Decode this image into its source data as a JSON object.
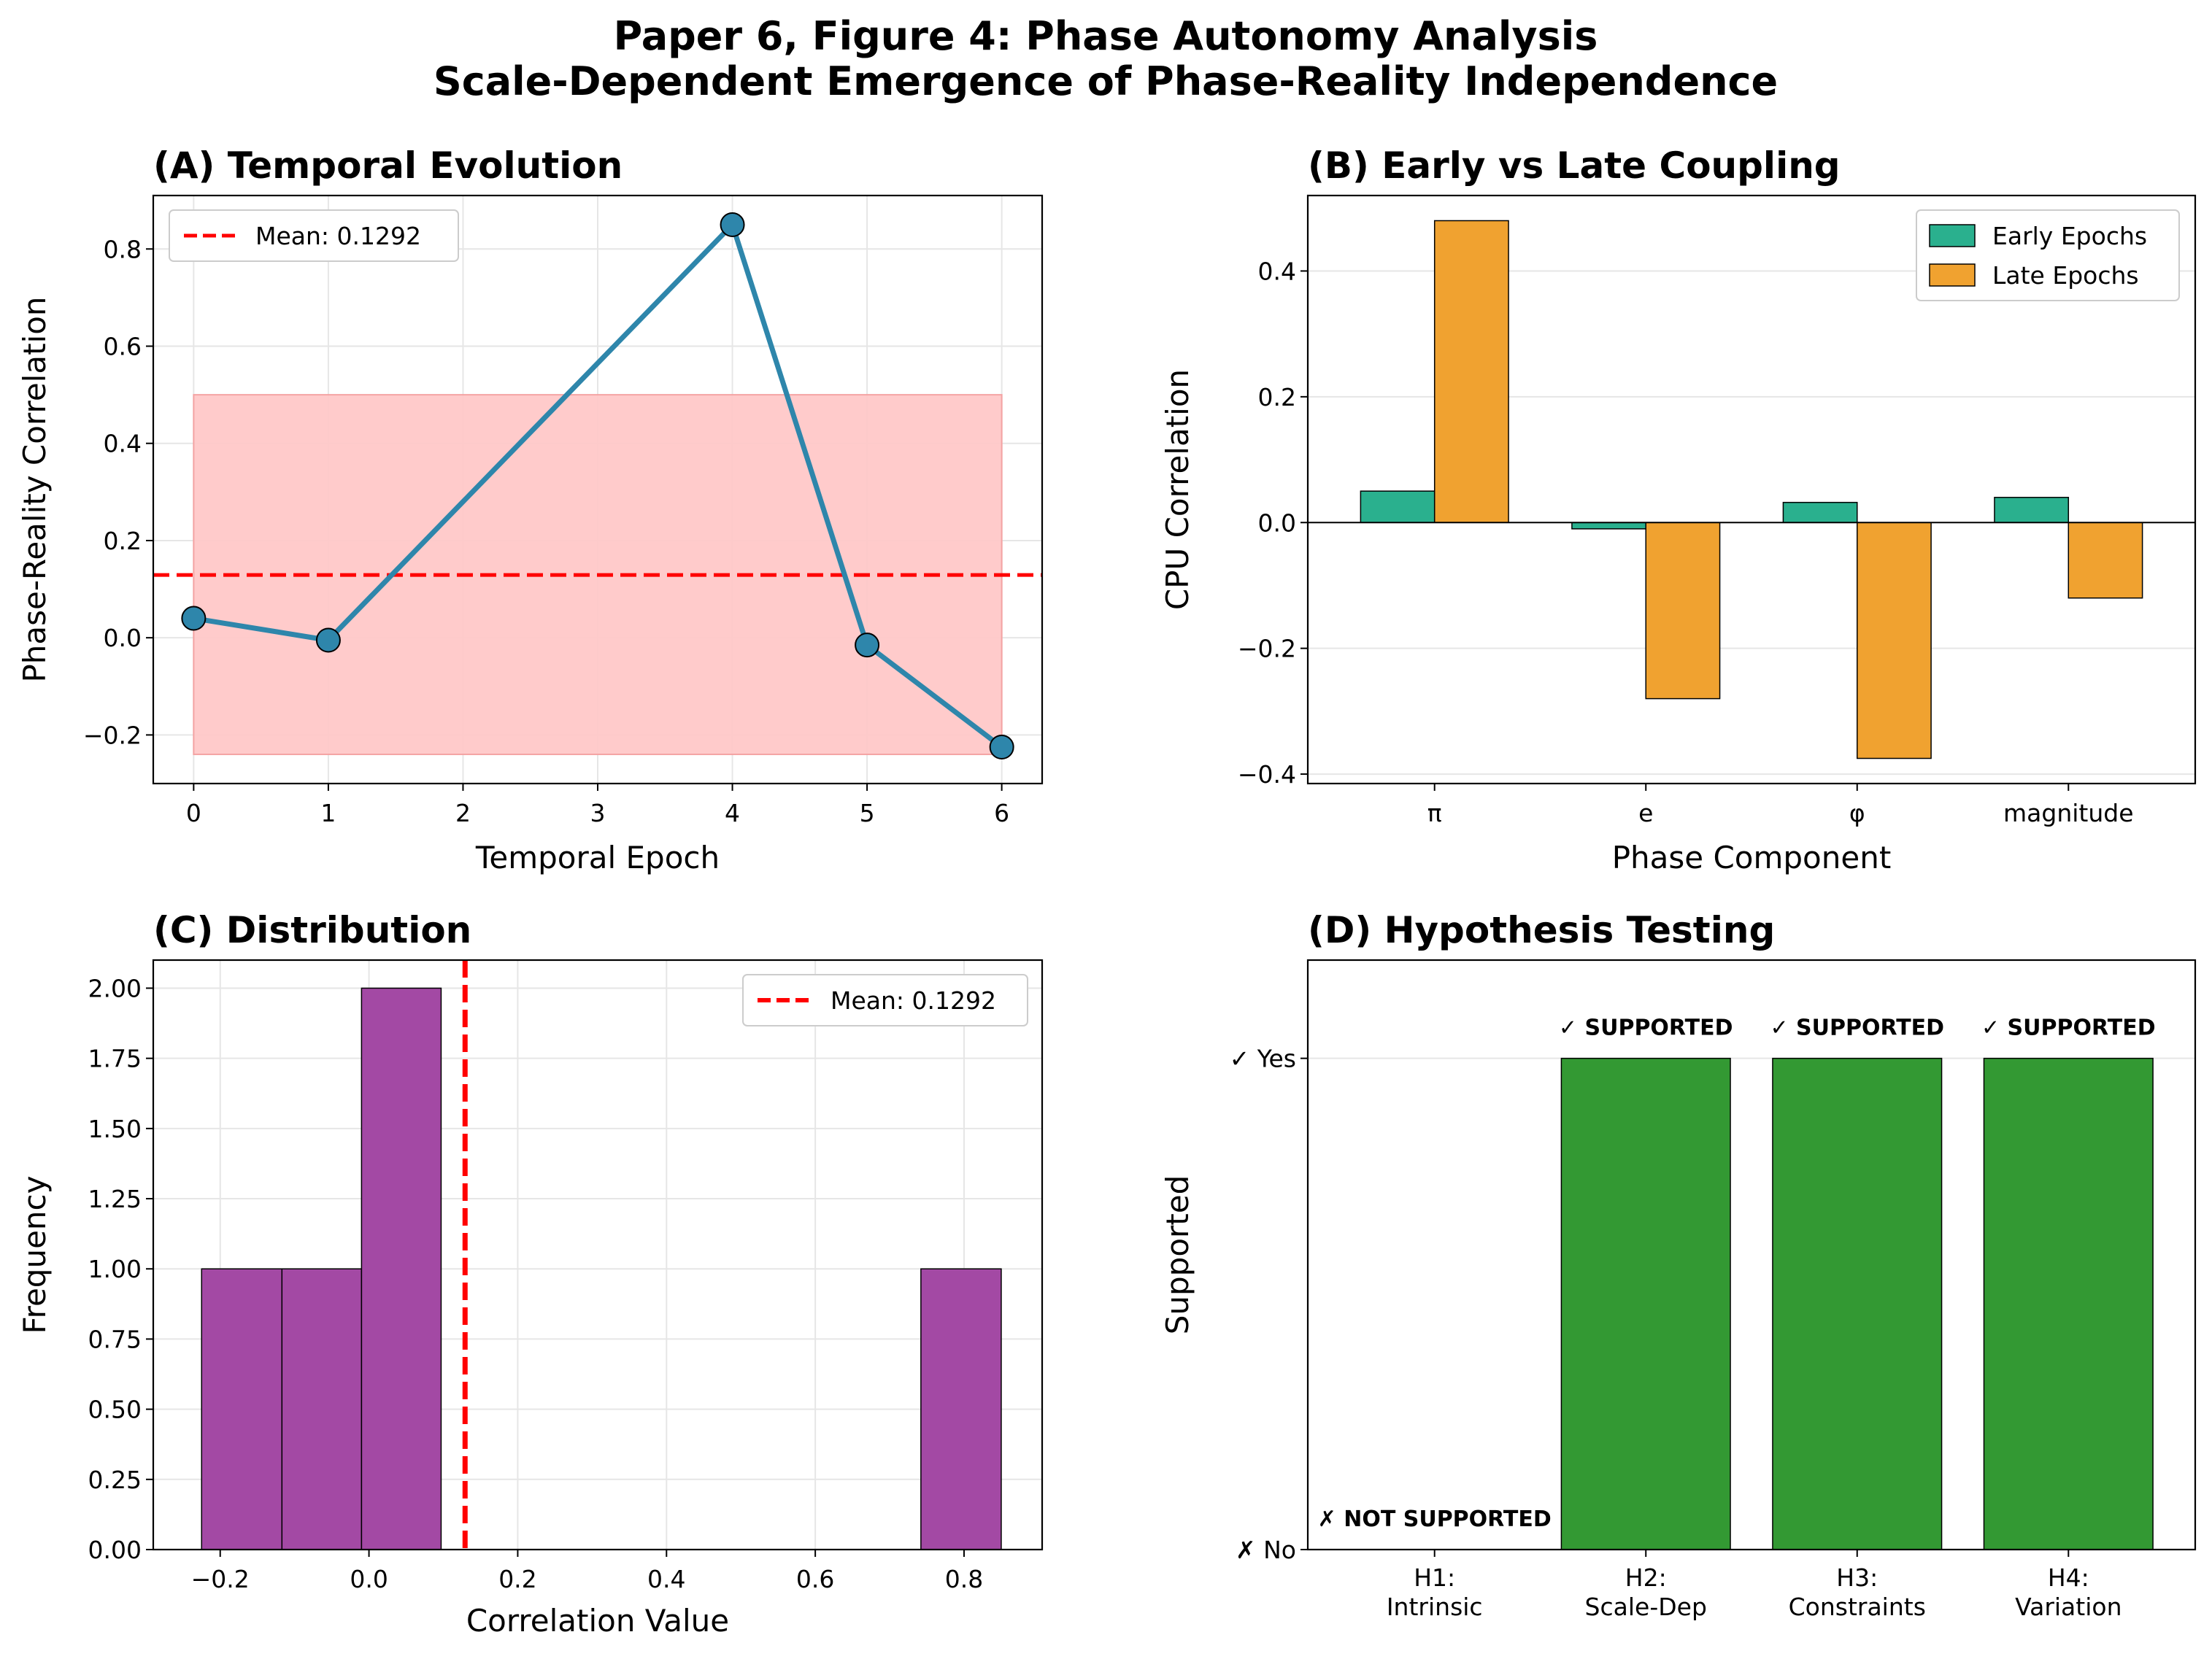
{
  "figure": {
    "title_line1": "Paper 6, Figure 4: Phase Autonomy Analysis",
    "title_line2": "Scale-Dependent Emergence of Phase-Reality Independence"
  },
  "colors": {
    "line": "#2e86ab",
    "mean": "#ff0000",
    "band": "#ffc9c9",
    "early": "#2ab08e",
    "late": "#f0a230",
    "hist": "#a349a4",
    "supported": "#339933",
    "grid": "#e6e6e6"
  },
  "chart_data": [
    {
      "id": "A",
      "type": "line",
      "title": "(A) Temporal Evolution",
      "xlabel": "Temporal Epoch",
      "ylabel": "Phase-Reality Correlation",
      "x": [
        0,
        1,
        4,
        5,
        6
      ],
      "y": [
        0.04,
        -0.005,
        0.85,
        -0.015,
        -0.225
      ],
      "xlim": [
        -0.3,
        6.3
      ],
      "ylim": [
        -0.3,
        0.91
      ],
      "xticks": [
        0,
        1,
        2,
        3,
        4,
        5,
        6
      ],
      "yticks": [
        -0.2,
        0.0,
        0.2,
        0.4,
        0.6,
        0.8
      ],
      "ytick_labels": [
        "−0.2",
        "0.0",
        "0.2",
        "0.4",
        "0.6",
        "0.8"
      ],
      "mean": 0.1292,
      "band": {
        "x0": 0,
        "x1": 6,
        "y0": -0.24,
        "y1": 0.5
      },
      "legend": [
        "Mean: 0.1292"
      ],
      "legend_loc": "upper left",
      "grid": true
    },
    {
      "id": "B",
      "type": "bar",
      "title": "(B) Early vs Late Coupling",
      "xlabel": "Phase Component",
      "ylabel": "CPU Correlation",
      "categories": [
        "π",
        "e",
        "φ",
        "magnitude"
      ],
      "series": [
        {
          "name": "Early Epochs",
          "values": [
            0.05,
            -0.01,
            0.032,
            0.04
          ]
        },
        {
          "name": "Late Epochs",
          "values": [
            0.48,
            -0.28,
            -0.375,
            -0.12
          ]
        }
      ],
      "ylim": [
        -0.415,
        0.52
      ],
      "yticks": [
        -0.4,
        -0.2,
        0.0,
        0.2,
        0.4
      ],
      "ytick_labels": [
        "−0.4",
        "−0.2",
        "0.0",
        "0.2",
        "0.4"
      ],
      "legend_loc": "upper right",
      "grid": true
    },
    {
      "id": "C",
      "type": "bar",
      "subtype": "histogram",
      "title": "(C) Distribution",
      "xlabel": "Correlation Value",
      "ylabel": "Frequency",
      "bins": [
        {
          "x0": -0.225,
          "x1": -0.117,
          "count": 1
        },
        {
          "x0": -0.117,
          "x1": -0.01,
          "count": 1
        },
        {
          "x0": -0.01,
          "x1": 0.097,
          "count": 2
        },
        {
          "x0": 0.097,
          "x1": 0.205,
          "count": 0
        },
        {
          "x0": 0.205,
          "x1": 0.312,
          "count": 0
        },
        {
          "x0": 0.312,
          "x1": 0.42,
          "count": 0
        },
        {
          "x0": 0.42,
          "x1": 0.527,
          "count": 0
        },
        {
          "x0": 0.527,
          "x1": 0.635,
          "count": 0
        },
        {
          "x0": 0.635,
          "x1": 0.742,
          "count": 0
        },
        {
          "x0": 0.742,
          "x1": 0.85,
          "count": 1
        }
      ],
      "xlim": [
        -0.29,
        0.905
      ],
      "ylim": [
        0,
        2.1
      ],
      "xticks": [
        -0.2,
        0.0,
        0.2,
        0.4,
        0.6,
        0.8
      ],
      "xtick_labels": [
        "−0.2",
        "0.0",
        "0.2",
        "0.4",
        "0.6",
        "0.8"
      ],
      "yticks": [
        0,
        0.25,
        0.5,
        0.75,
        1.0,
        1.25,
        1.5,
        1.75,
        2.0
      ],
      "ytick_labels": [
        "0.00",
        "0.25",
        "0.50",
        "0.75",
        "1.00",
        "1.25",
        "1.50",
        "1.75",
        "2.00"
      ],
      "mean": 0.1292,
      "legend": [
        "Mean: 0.1292"
      ],
      "legend_loc": "upper right",
      "grid": true
    },
    {
      "id": "D",
      "type": "bar",
      "title": "(D) Hypothesis Testing",
      "xlabel": "",
      "ylabel": "Supported",
      "categories": [
        [
          "H1:",
          "Intrinsic"
        ],
        [
          "H2:",
          "Scale-Dep"
        ],
        [
          "H3:",
          "Constraints"
        ],
        [
          "H4:",
          "Variation"
        ]
      ],
      "values": [
        0,
        1,
        1,
        1
      ],
      "annotations": [
        "✗ NOT SUPPORTED",
        "✓ SUPPORTED",
        "✓ SUPPORTED",
        "✓ SUPPORTED"
      ],
      "ylim": [
        0,
        1.2
      ],
      "yticks": [
        0,
        1
      ],
      "ytick_labels": [
        "✗ No",
        "✓ Yes"
      ],
      "grid": true
    }
  ]
}
